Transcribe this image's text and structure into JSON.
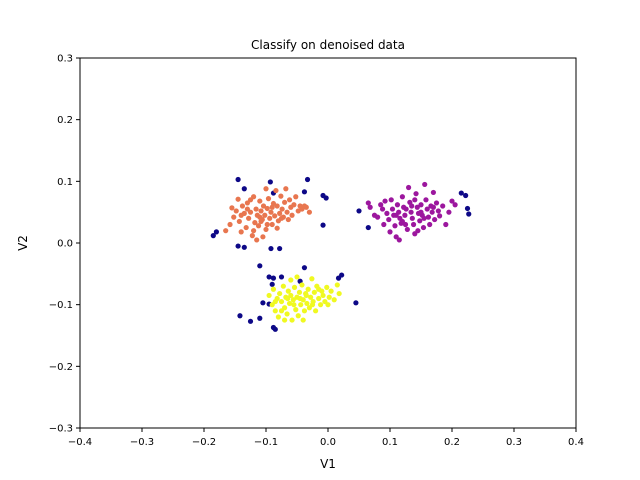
{
  "chart_data": {
    "type": "scatter",
    "title": "Classify on denoised data",
    "xlabel": "V1",
    "ylabel": "V2",
    "xlim": [
      -0.4,
      0.4
    ],
    "ylim": [
      -0.3,
      0.3
    ],
    "xticks": [
      -0.4,
      -0.3,
      -0.2,
      -0.1,
      0.0,
      0.1,
      0.2,
      0.3,
      0.4
    ],
    "yticks": [
      -0.3,
      -0.2,
      -0.1,
      0.0,
      0.1,
      0.2,
      0.3
    ],
    "xtick_labels": [
      "−0.4",
      "−0.3",
      "−0.2",
      "−0.1",
      "0.0",
      "0.1",
      "0.2",
      "0.3",
      "0.4"
    ],
    "ytick_labels": [
      "−0.3",
      "−0.2",
      "−0.1",
      "0.0",
      "0.1",
      "0.2",
      "0.3"
    ],
    "grid": false,
    "series": [
      {
        "color": "#0d0887",
        "points": [
          [
            -0.145,
            0.103
          ],
          [
            -0.135,
            0.088
          ],
          [
            -0.093,
            0.099
          ],
          [
            -0.033,
            0.103
          ],
          [
            -0.038,
            0.083
          ],
          [
            -0.008,
            0.077
          ],
          [
            -0.003,
            0.073
          ],
          [
            -0.008,
            0.029
          ],
          [
            -0.18,
            0.018
          ],
          [
            -0.185,
            0.012
          ],
          [
            -0.145,
            -0.005
          ],
          [
            -0.135,
            -0.007
          ],
          [
            -0.092,
            -0.009
          ],
          [
            -0.078,
            -0.009
          ],
          [
            -0.11,
            -0.037
          ],
          [
            -0.095,
            -0.055
          ],
          [
            -0.088,
            -0.057
          ],
          [
            -0.09,
            -0.067
          ],
          [
            -0.075,
            -0.055
          ],
          [
            -0.038,
            -0.04
          ],
          [
            0.017,
            -0.057
          ],
          [
            0.022,
            -0.052
          ],
          [
            -0.045,
            -0.062
          ],
          [
            -0.105,
            -0.097
          ],
          [
            -0.095,
            -0.099
          ],
          [
            0.045,
            -0.097
          ],
          [
            -0.142,
            -0.118
          ],
          [
            -0.11,
            -0.122
          ],
          [
            -0.125,
            -0.127
          ],
          [
            -0.088,
            -0.137
          ],
          [
            -0.085,
            -0.14
          ],
          [
            0.05,
            0.052
          ],
          [
            0.065,
            0.025
          ],
          [
            0.215,
            0.081
          ],
          [
            0.222,
            0.077
          ],
          [
            0.225,
            0.056
          ],
          [
            0.227,
            0.047
          ],
          [
            -0.088,
            0.081
          ]
        ]
      },
      {
        "color": "#e8764f",
        "points": [
          [
            -0.155,
            0.057
          ],
          [
            -0.152,
            0.042
          ],
          [
            -0.148,
            0.052
          ],
          [
            -0.145,
            0.071
          ],
          [
            -0.143,
            0.035
          ],
          [
            -0.14,
            0.018
          ],
          [
            -0.138,
            0.06
          ],
          [
            -0.135,
            0.048
          ],
          [
            -0.132,
            0.025
          ],
          [
            -0.13,
            0.065
          ],
          [
            -0.128,
            0.04
          ],
          [
            -0.125,
            0.05
          ],
          [
            -0.122,
            0.012
          ],
          [
            -0.12,
            0.075
          ],
          [
            -0.118,
            0.033
          ],
          [
            -0.116,
            0.055
          ],
          [
            -0.114,
            0.045
          ],
          [
            -0.112,
            0.028
          ],
          [
            -0.11,
            0.068
          ],
          [
            -0.108,
            0.052
          ],
          [
            -0.106,
            0.038
          ],
          [
            -0.104,
            0.06
          ],
          [
            -0.102,
            0.045
          ],
          [
            -0.1,
            0.022
          ],
          [
            -0.098,
            0.056
          ],
          [
            -0.096,
            0.072
          ],
          [
            -0.094,
            0.04
          ],
          [
            -0.092,
            0.05
          ],
          [
            -0.09,
            0.03
          ],
          [
            -0.088,
            0.064
          ],
          [
            -0.086,
            0.044
          ],
          [
            -0.084,
            0.085
          ],
          [
            -0.082,
            0.06
          ],
          [
            -0.08,
            0.036
          ],
          [
            -0.078,
            0.048
          ],
          [
            -0.076,
            0.076
          ],
          [
            -0.074,
            0.055
          ],
          [
            -0.072,
            0.042
          ],
          [
            -0.07,
            0.066
          ],
          [
            -0.068,
            0.088
          ],
          [
            -0.066,
            0.05
          ],
          [
            -0.064,
            0.038
          ],
          [
            -0.062,
            0.07
          ],
          [
            -0.06,
            0.058
          ],
          [
            -0.058,
            0.045
          ],
          [
            -0.055,
            0.062
          ],
          [
            -0.052,
            0.075
          ],
          [
            -0.048,
            0.052
          ],
          [
            -0.045,
            0.06
          ],
          [
            -0.042,
            0.055
          ],
          [
            -0.038,
            0.06
          ],
          [
            -0.035,
            0.058
          ],
          [
            -0.03,
            0.05
          ],
          [
            -0.165,
            0.02
          ],
          [
            -0.158,
            0.03
          ],
          [
            -0.1,
            0.088
          ],
          [
            -0.115,
            0.005
          ],
          [
            -0.105,
            0.01
          ],
          [
            -0.082,
            0.024
          ],
          [
            -0.125,
            0.07
          ],
          [
            -0.14,
            0.045
          ],
          [
            -0.13,
            0.055
          ],
          [
            -0.108,
            0.035
          ],
          [
            -0.09,
            0.058
          ],
          [
            -0.075,
            0.04
          ],
          [
            -0.12,
            0.02
          ],
          [
            -0.098,
            0.03
          ],
          [
            -0.11,
            0.042
          ]
        ]
      },
      {
        "color": "#9c179e",
        "points": [
          [
            0.065,
            0.065
          ],
          [
            0.068,
            0.058
          ],
          [
            0.075,
            0.045
          ],
          [
            0.08,
            0.042
          ],
          [
            0.085,
            0.062
          ],
          [
            0.088,
            0.055
          ],
          [
            0.09,
            0.03
          ],
          [
            0.092,
            0.068
          ],
          [
            0.095,
            0.048
          ],
          [
            0.098,
            0.038
          ],
          [
            0.1,
            0.018
          ],
          [
            0.102,
            0.07
          ],
          [
            0.104,
            0.055
          ],
          [
            0.106,
            0.045
          ],
          [
            0.108,
            0.028
          ],
          [
            0.11,
            0.01
          ],
          [
            0.112,
            0.062
          ],
          [
            0.114,
            0.05
          ],
          [
            0.116,
            0.04
          ],
          [
            0.118,
            0.032
          ],
          [
            0.12,
            0.075
          ],
          [
            0.122,
            0.058
          ],
          [
            0.124,
            0.045
          ],
          [
            0.126,
            0.055
          ],
          [
            0.128,
            0.022
          ],
          [
            0.13,
            0.09
          ],
          [
            0.132,
            0.066
          ],
          [
            0.134,
            0.05
          ],
          [
            0.136,
            0.04
          ],
          [
            0.138,
            0.03
          ],
          [
            0.14,
            0.015
          ],
          [
            0.142,
            0.08
          ],
          [
            0.144,
            0.058
          ],
          [
            0.146,
            0.048
          ],
          [
            0.148,
            0.036
          ],
          [
            0.15,
            0.062
          ],
          [
            0.152,
            0.045
          ],
          [
            0.154,
            0.025
          ],
          [
            0.156,
            0.095
          ],
          [
            0.158,
            0.07
          ],
          [
            0.16,
            0.055
          ],
          [
            0.162,
            0.042
          ],
          [
            0.164,
            0.03
          ],
          [
            0.166,
            0.06
          ],
          [
            0.168,
            0.05
          ],
          [
            0.17,
            0.082
          ],
          [
            0.172,
            0.038
          ],
          [
            0.175,
            0.065
          ],
          [
            0.178,
            0.052
          ],
          [
            0.18,
            0.044
          ],
          [
            0.185,
            0.06
          ],
          [
            0.19,
            0.03
          ],
          [
            0.195,
            0.05
          ],
          [
            0.2,
            0.068
          ],
          [
            0.205,
            0.062
          ],
          [
            0.115,
            0.005
          ],
          [
            0.125,
            0.03
          ],
          [
            0.135,
            0.06
          ],
          [
            0.145,
            0.02
          ],
          [
            0.155,
            0.04
          ],
          [
            0.11,
            0.045
          ],
          [
            0.12,
            0.035
          ],
          [
            0.14,
            0.07
          ],
          [
            0.15,
            0.05
          ],
          [
            0.17,
            0.058
          ]
        ]
      },
      {
        "color": "#f0f921",
        "points": [
          [
            -0.095,
            -0.085
          ],
          [
            -0.09,
            -0.1
          ],
          [
            -0.088,
            -0.075
          ],
          [
            -0.085,
            -0.11
          ],
          [
            -0.082,
            -0.09
          ],
          [
            -0.08,
            -0.12
          ],
          [
            -0.078,
            -0.082
          ],
          [
            -0.075,
            -0.095
          ],
          [
            -0.072,
            -0.07
          ],
          [
            -0.07,
            -0.105
          ],
          [
            -0.068,
            -0.088
          ],
          [
            -0.066,
            -0.115
          ],
          [
            -0.064,
            -0.078
          ],
          [
            -0.062,
            -0.098
          ],
          [
            -0.06,
            -0.085
          ],
          [
            -0.058,
            -0.125
          ],
          [
            -0.056,
            -0.092
          ],
          [
            -0.054,
            -0.072
          ],
          [
            -0.052,
            -0.108
          ],
          [
            -0.05,
            -0.088
          ],
          [
            -0.048,
            -0.118
          ],
          [
            -0.046,
            -0.08
          ],
          [
            -0.044,
            -0.1
          ],
          [
            -0.042,
            -0.068
          ],
          [
            -0.04,
            -0.092
          ],
          [
            -0.038,
            -0.11
          ],
          [
            -0.036,
            -0.082
          ],
          [
            -0.034,
            -0.098
          ],
          [
            -0.032,
            -0.075
          ],
          [
            -0.03,
            -0.105
          ],
          [
            -0.028,
            -0.088
          ],
          [
            -0.026,
            -0.058
          ],
          [
            -0.024,
            -0.095
          ],
          [
            -0.022,
            -0.08
          ],
          [
            -0.02,
            -0.11
          ],
          [
            -0.018,
            -0.07
          ],
          [
            -0.015,
            -0.09
          ],
          [
            -0.012,
            -0.1
          ],
          [
            -0.01,
            -0.078
          ],
          [
            -0.008,
            -0.085
          ],
          [
            -0.005,
            -0.095
          ],
          [
            -0.002,
            -0.072
          ],
          [
            0.002,
            -0.088
          ],
          [
            0.005,
            -0.078
          ],
          [
            0.01,
            -0.092
          ],
          [
            0.015,
            -0.068
          ],
          [
            0.018,
            -0.082
          ],
          [
            -0.06,
            -0.06
          ],
          [
            -0.05,
            -0.055
          ],
          [
            -0.07,
            -0.125
          ],
          [
            -0.04,
            -0.125
          ],
          [
            -0.055,
            -0.1
          ],
          [
            -0.065,
            -0.09
          ],
          [
            -0.045,
            -0.09
          ],
          [
            -0.035,
            -0.085
          ],
          [
            -0.025,
            -0.1
          ],
          [
            -0.075,
            -0.11
          ],
          [
            -0.085,
            -0.095
          ],
          [
            -0.015,
            -0.075
          ],
          [
            0.0,
            -0.1
          ]
        ]
      }
    ]
  }
}
